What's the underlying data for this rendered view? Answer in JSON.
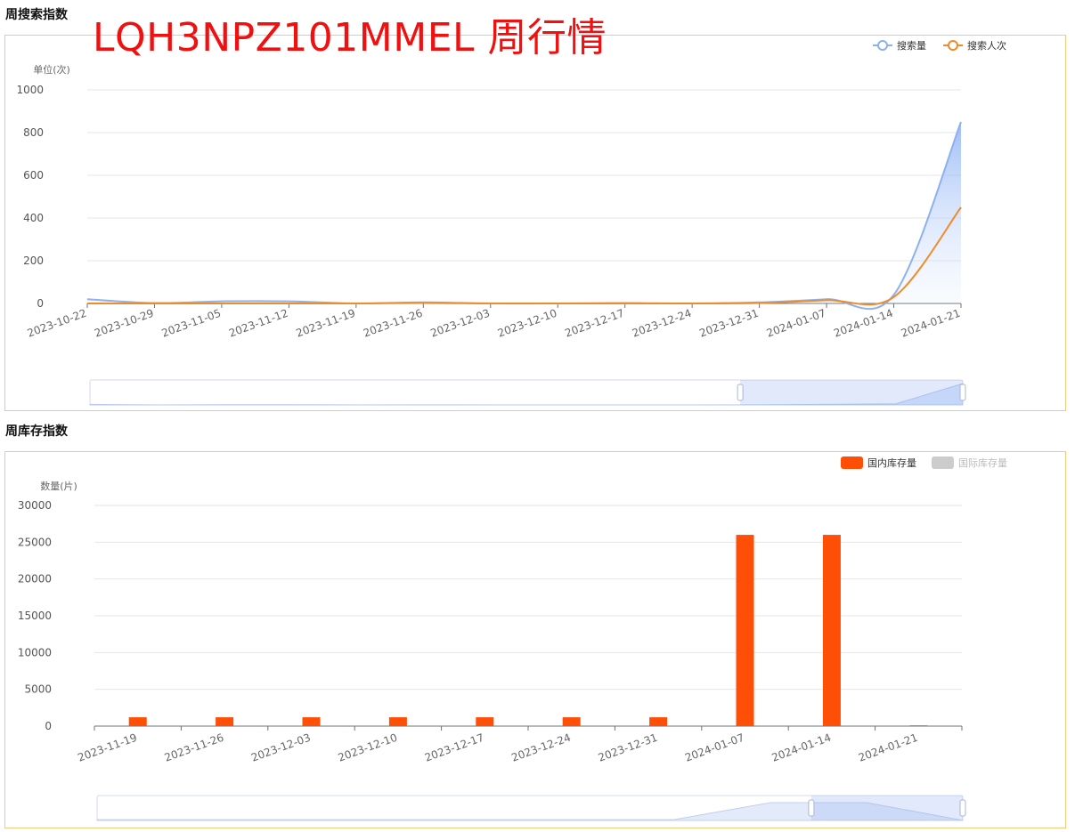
{
  "page": {
    "overlay_title": "LQH3NPZ101MMEL 周行情"
  },
  "chart_data": [
    {
      "type": "line",
      "section_title": "周搜索指数",
      "ylabel": "单位(次)",
      "ylim": [
        0,
        1000
      ],
      "yticks": [
        0,
        200,
        400,
        600,
        800,
        1000
      ],
      "legend_position": "top-right",
      "x": [
        "2023-10-22",
        "2023-10-29",
        "2023-11-05",
        "2023-11-12",
        "2023-11-19",
        "2023-11-26",
        "2023-12-03",
        "2023-12-10",
        "2023-12-17",
        "2023-12-24",
        "2023-12-31",
        "2024-01-07",
        "2024-01-14",
        "2024-01-21"
      ],
      "series": [
        {
          "name": "搜索量",
          "color": "#8cb1ee",
          "area": true,
          "values": [
            20,
            2,
            10,
            10,
            0,
            5,
            0,
            0,
            2,
            0,
            5,
            20,
            40,
            850
          ]
        },
        {
          "name": "搜索人次",
          "color": "#f08b2a",
          "area": false,
          "values": [
            0,
            0,
            0,
            0,
            0,
            2,
            0,
            0,
            0,
            0,
            2,
            15,
            30,
            450
          ]
        }
      ],
      "datazoom": {
        "start": 0.745,
        "end": 1.0
      }
    },
    {
      "type": "bar",
      "section_title": "周库存指数",
      "ylabel": "数量(片)",
      "ylim": [
        0,
        30000
      ],
      "yticks": [
        0,
        5000,
        10000,
        15000,
        20000,
        25000,
        30000
      ],
      "legend_position": "top-right",
      "categories": [
        "2023-11-19",
        "2023-11-26",
        "2023-12-03",
        "2023-12-10",
        "2023-12-17",
        "2023-12-24",
        "2023-12-31",
        "2024-01-07",
        "2024-01-14",
        "2024-01-21"
      ],
      "series": [
        {
          "name": "国内库存量",
          "color": "#ff4e06",
          "active": true,
          "values": [
            1200,
            1200,
            1200,
            1200,
            1200,
            1200,
            1200,
            26000,
            26000,
            100
          ]
        },
        {
          "name": "国际库存量",
          "color": "#cccccc",
          "active": false,
          "values": [
            0,
            0,
            0,
            0,
            0,
            0,
            0,
            0,
            0,
            0
          ]
        }
      ],
      "datazoom": {
        "start": 0.825,
        "end": 1.0
      }
    }
  ]
}
